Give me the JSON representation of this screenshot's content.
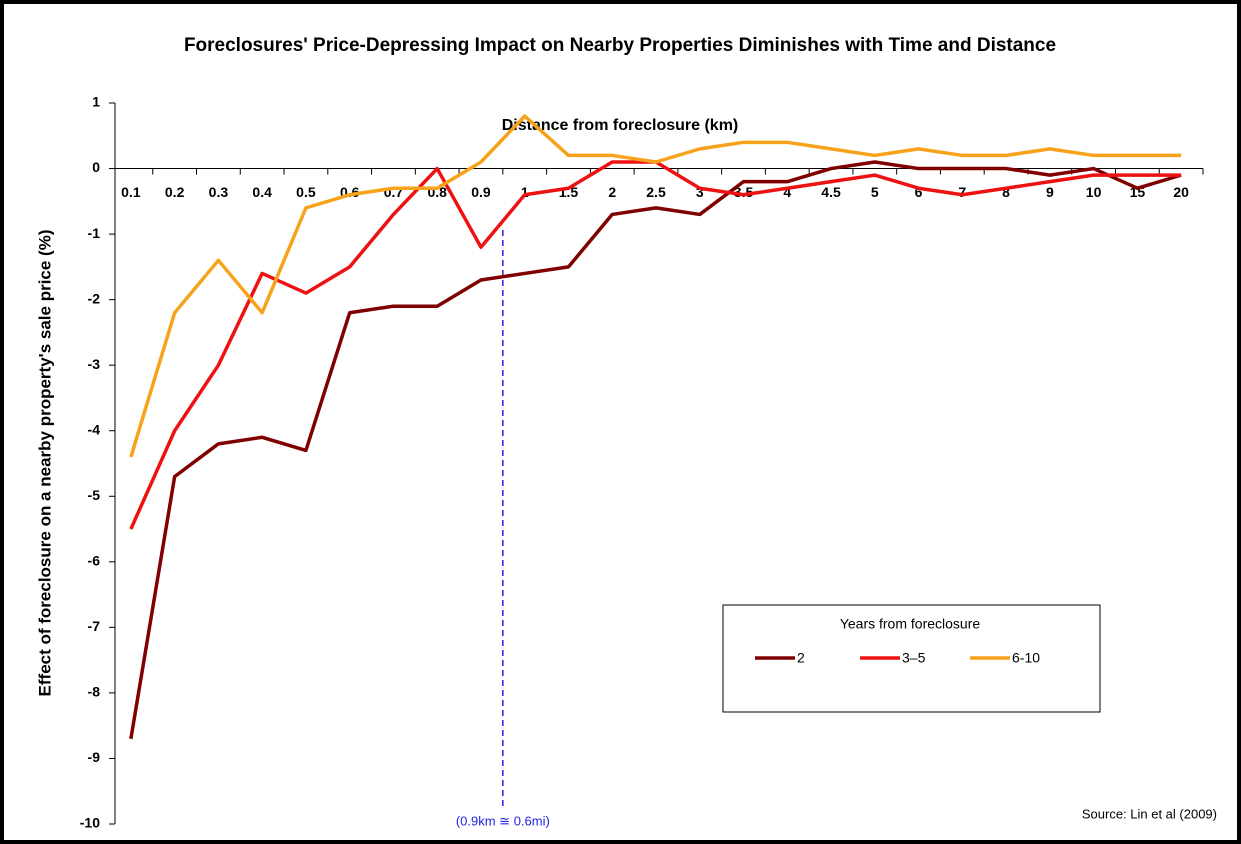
{
  "chart_data": {
    "type": "line",
    "title": "Foreclosures' Price-Depressing Impact on Nearby Properties Diminishes with Time and Distance",
    "x_label": "Distance from foreclosure (km)",
    "y_label": "Effect of foreclosure on a nearby property's sale price (%)",
    "annotation": "(0.9km ≅ 0.6mi)",
    "source": "Source: Lin et al (2009)",
    "legend_title": "Years from foreclosure",
    "categories": [
      "0.1",
      "0.2",
      "0.3",
      "0.4",
      "0.5",
      "0.6",
      "0.7",
      "0.8",
      "0.9",
      "1",
      "1.5",
      "2",
      "2.5",
      "3",
      "3.5",
      "4",
      "4.5",
      "5",
      "6",
      "7",
      "8",
      "9",
      "10",
      "15",
      "20"
    ],
    "series": [
      {
        "name": "2",
        "color": "#800000",
        "values": [
          -8.7,
          -4.7,
          -4.2,
          -4.1,
          -4.3,
          -2.2,
          -2.1,
          -2.1,
          -1.7,
          -1.6,
          -1.5,
          -0.7,
          -0.6,
          -0.7,
          -0.2,
          -0.2,
          0,
          0.1,
          0,
          0,
          0,
          -0.1,
          0,
          -0.3,
          -0.1
        ]
      },
      {
        "name": "3–5",
        "color": "#ee1111",
        "values": [
          -5.5,
          -4,
          -3,
          -1.6,
          -1.9,
          -1.5,
          -0.7,
          0,
          -1.2,
          -0.4,
          -0.3,
          0.1,
          0.1,
          -0.3,
          -0.4,
          -0.3,
          -0.2,
          -0.1,
          -0.3,
          -0.4,
          -0.3,
          -0.2,
          -0.1,
          -0.1,
          -0.1
        ]
      },
      {
        "name": "6-10",
        "color": "#f7a21b",
        "values": [
          -4.4,
          -2.2,
          -1.4,
          -2.2,
          -0.6,
          -0.4,
          -0.3,
          -0.3,
          0.1,
          0.8,
          0.2,
          0.2,
          0.1,
          0.3,
          0.4,
          0.4,
          0.3,
          0.2,
          0.3,
          0.2,
          0.2,
          0.3,
          0.2,
          0.2,
          0.2
        ]
      }
    ],
    "ylim": [
      -10,
      1
    ],
    "yticks": [
      1,
      0,
      -1,
      -2,
      -3,
      -4,
      -5,
      -6,
      -7,
      -8,
      -9,
      -10
    ]
  }
}
